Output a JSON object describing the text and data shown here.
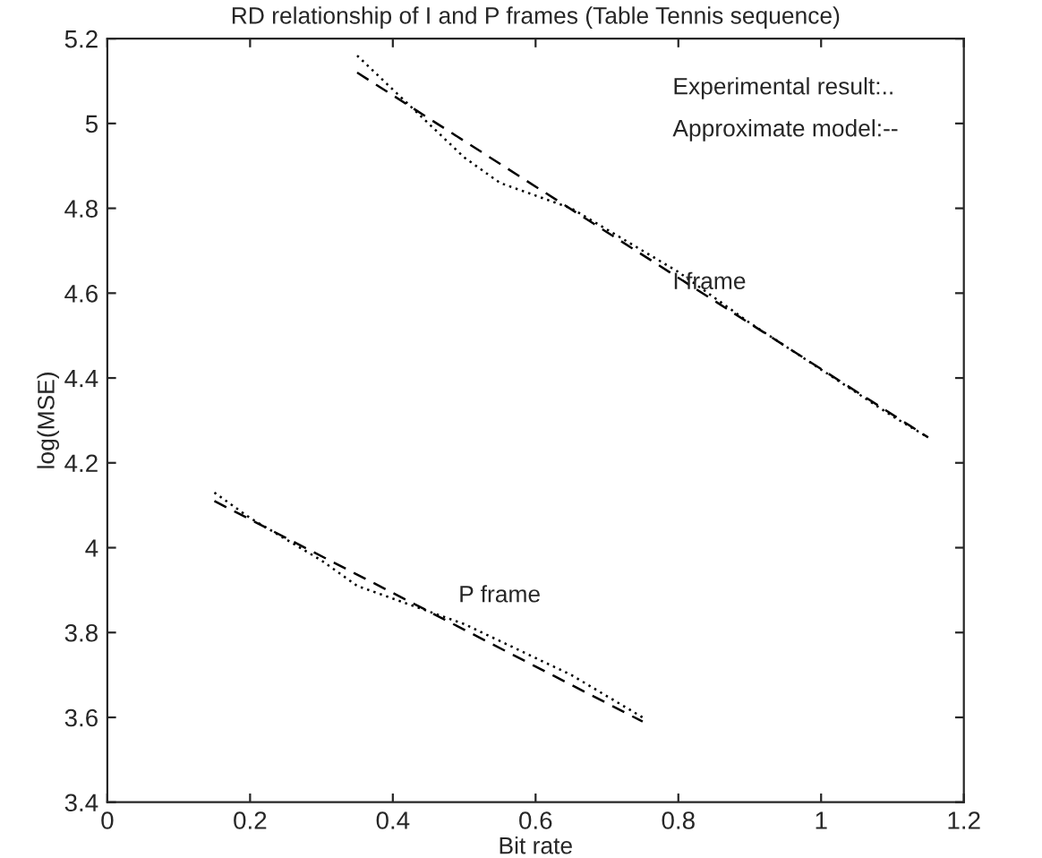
{
  "chart_data": {
    "type": "line",
    "title": "RD relationship of I and P frames (Table Tennis sequence)",
    "xlabel": "Bit rate",
    "ylabel": "log(MSE)",
    "xlim": [
      0,
      1.2
    ],
    "xticks": [
      0,
      0.2,
      0.4,
      0.6,
      0.8,
      1,
      1.2
    ],
    "ylim": [
      3.4,
      5.2
    ],
    "yticks": [
      3.4,
      3.6,
      3.8,
      4,
      4.2,
      4.4,
      4.6,
      4.8,
      5,
      5.2
    ],
    "grid": false,
    "legend": false,
    "marker": "none",
    "series": [
      {
        "color": "#000000",
        "line_style": "dotted",
        "x": [
          0.35,
          0.4,
          0.45,
          0.5,
          0.55,
          0.6,
          0.65,
          0.7,
          0.8,
          0.9,
          1.0,
          1.1,
          1.15
        ],
        "values": [
          5.16,
          5.08,
          5.0,
          4.92,
          4.86,
          4.83,
          4.8,
          4.75,
          4.65,
          4.53,
          4.42,
          4.31,
          4.26
        ]
      },
      {
        "color": "#000000",
        "line_style": "dashed",
        "x": [
          0.35,
          1.15
        ],
        "values": [
          5.12,
          4.26
        ]
      },
      {
        "color": "#000000",
        "line_style": "dotted",
        "x": [
          0.15,
          0.2,
          0.3,
          0.35,
          0.4,
          0.45,
          0.5,
          0.55,
          0.6,
          0.65,
          0.7,
          0.75
        ],
        "values": [
          4.13,
          4.07,
          3.97,
          3.91,
          3.88,
          3.85,
          3.82,
          3.78,
          3.74,
          3.7,
          3.65,
          3.6
        ]
      },
      {
        "color": "#000000",
        "line_style": "dashed",
        "x": [
          0.15,
          0.75
        ],
        "values": [
          4.11,
          3.59
        ]
      }
    ],
    "annotations": [
      "Experimental result:..",
      "Approximate model:--",
      "I frame",
      "P frame"
    ]
  }
}
